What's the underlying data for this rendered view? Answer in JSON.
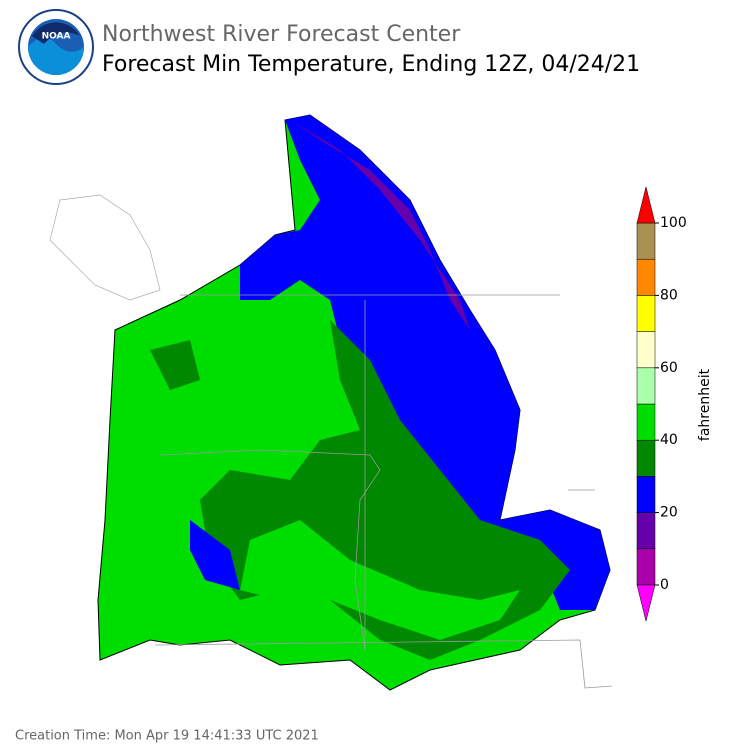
{
  "header": {
    "logo_text": "NOAA",
    "title": "Northwest River Forecast Center",
    "subtitle": "Forecast Min Temperature, Ending 12Z, 04/24/21"
  },
  "colorbar": {
    "label": "fahrenheit",
    "bounds": [
      0,
      10,
      20,
      30,
      40,
      50,
      60,
      70,
      80,
      90,
      100
    ],
    "colors": [
      "#aa00aa",
      "#6600aa",
      "#0000ff",
      "#008800",
      "#00dd00",
      "#aaffaa",
      "#ffffcc",
      "#ffff00",
      "#ff8800",
      "#a89050"
    ],
    "under_color": "#ff00ff",
    "over_color": "#ff0000",
    "ticks": [
      0,
      20,
      40,
      60,
      80,
      100
    ]
  },
  "footer": {
    "creation_time": "Creation Time: Mon Apr 19 14:41:33 UTC 2021"
  }
}
